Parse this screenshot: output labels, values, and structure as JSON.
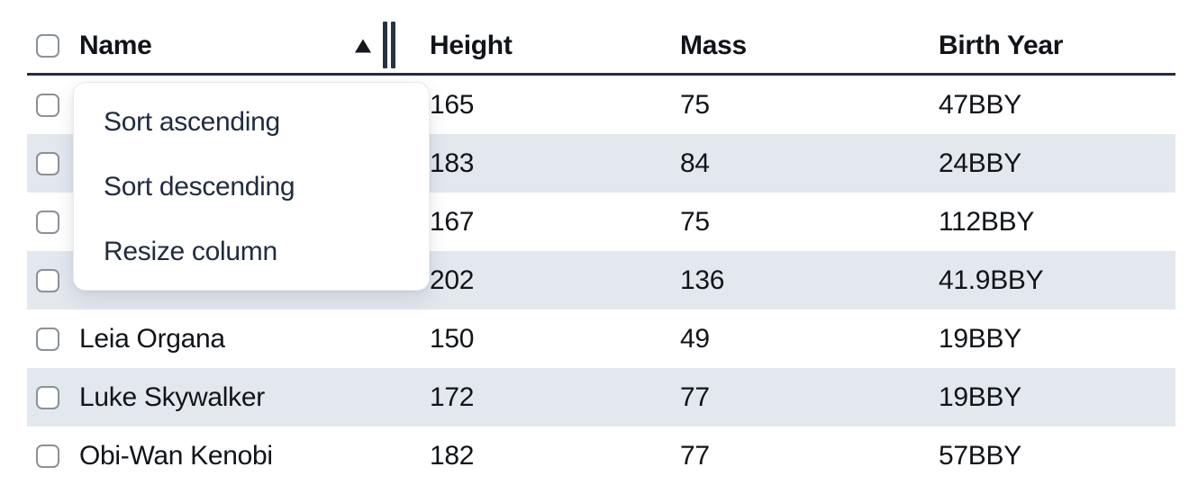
{
  "table": {
    "columns": {
      "name": "Name",
      "height": "Height",
      "mass": "Mass",
      "birth_year": "Birth Year"
    },
    "sort": {
      "column": "Name",
      "direction": "ascending"
    },
    "rows": [
      {
        "name": "",
        "height": "165",
        "mass": "75",
        "birth_year": "47BBY",
        "checked": false
      },
      {
        "name": "",
        "height": "183",
        "mass": "84",
        "birth_year": "24BBY",
        "checked": false
      },
      {
        "name": "",
        "height": "167",
        "mass": "75",
        "birth_year": "112BBY",
        "checked": false
      },
      {
        "name": "",
        "height": "202",
        "mass": "136",
        "birth_year": "41.9BBY",
        "checked": false
      },
      {
        "name": "Leia Organa",
        "height": "150",
        "mass": "49",
        "birth_year": "19BBY",
        "checked": false
      },
      {
        "name": "Luke Skywalker",
        "height": "172",
        "mass": "77",
        "birth_year": "19BBY",
        "checked": false
      },
      {
        "name": "Obi-Wan Kenobi",
        "height": "182",
        "mass": "77",
        "birth_year": "57BBY",
        "checked": false
      }
    ]
  },
  "context_menu": {
    "items": [
      {
        "label": "Sort ascending"
      },
      {
        "label": "Sort descending"
      },
      {
        "label": "Resize column"
      }
    ]
  },
  "icons": {
    "sort_ascending": "up-triangle",
    "column_resize": "double-vertical-bars",
    "checkbox": "empty-rounded-square"
  },
  "colors": {
    "row_stripe": "#e3e8ef",
    "header_border": "#222e3e",
    "text": "#111418",
    "menu_text": "#212c40",
    "checkbox_border": "#8b9199"
  }
}
